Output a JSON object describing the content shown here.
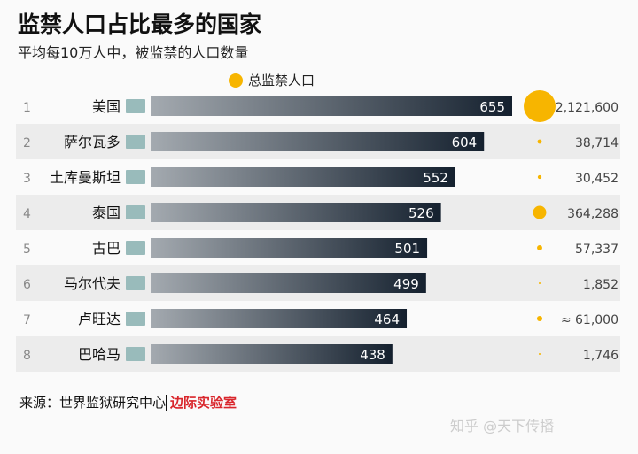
{
  "chart_data": {
    "type": "bar",
    "title": "监禁人口占比最多的国家",
    "subtitle": "平均每10万人中，被监禁的人口数量",
    "legend": "总监禁人口",
    "ranks": [
      "1",
      "2",
      "3",
      "4",
      "5",
      "6",
      "7",
      "8"
    ],
    "categories": [
      "美国",
      "萨尔瓦多",
      "土库曼斯坦",
      "泰国",
      "古巴",
      "马尔代夫",
      "卢旺达",
      "巴哈马"
    ],
    "values": [
      655,
      604,
      552,
      526,
      501,
      499,
      464,
      438
    ],
    "totals": [
      2121600,
      38714,
      30452,
      364288,
      57337,
      1852,
      61000,
      1746
    ],
    "total_labels": [
      "2,121,600",
      "38,714",
      "30,452",
      "364,288",
      "57,337",
      "1,852",
      "≈ 61,000",
      "1,746"
    ],
    "colors": {
      "bar_start": "#a4aab0",
      "bar_end": "#14202e",
      "dot": "#f7b500",
      "stripe": "#ececec"
    }
  },
  "source_label": "来源：世界监狱研究中心",
  "brand": "边际实验室",
  "watermark": "知乎 @天下传播"
}
